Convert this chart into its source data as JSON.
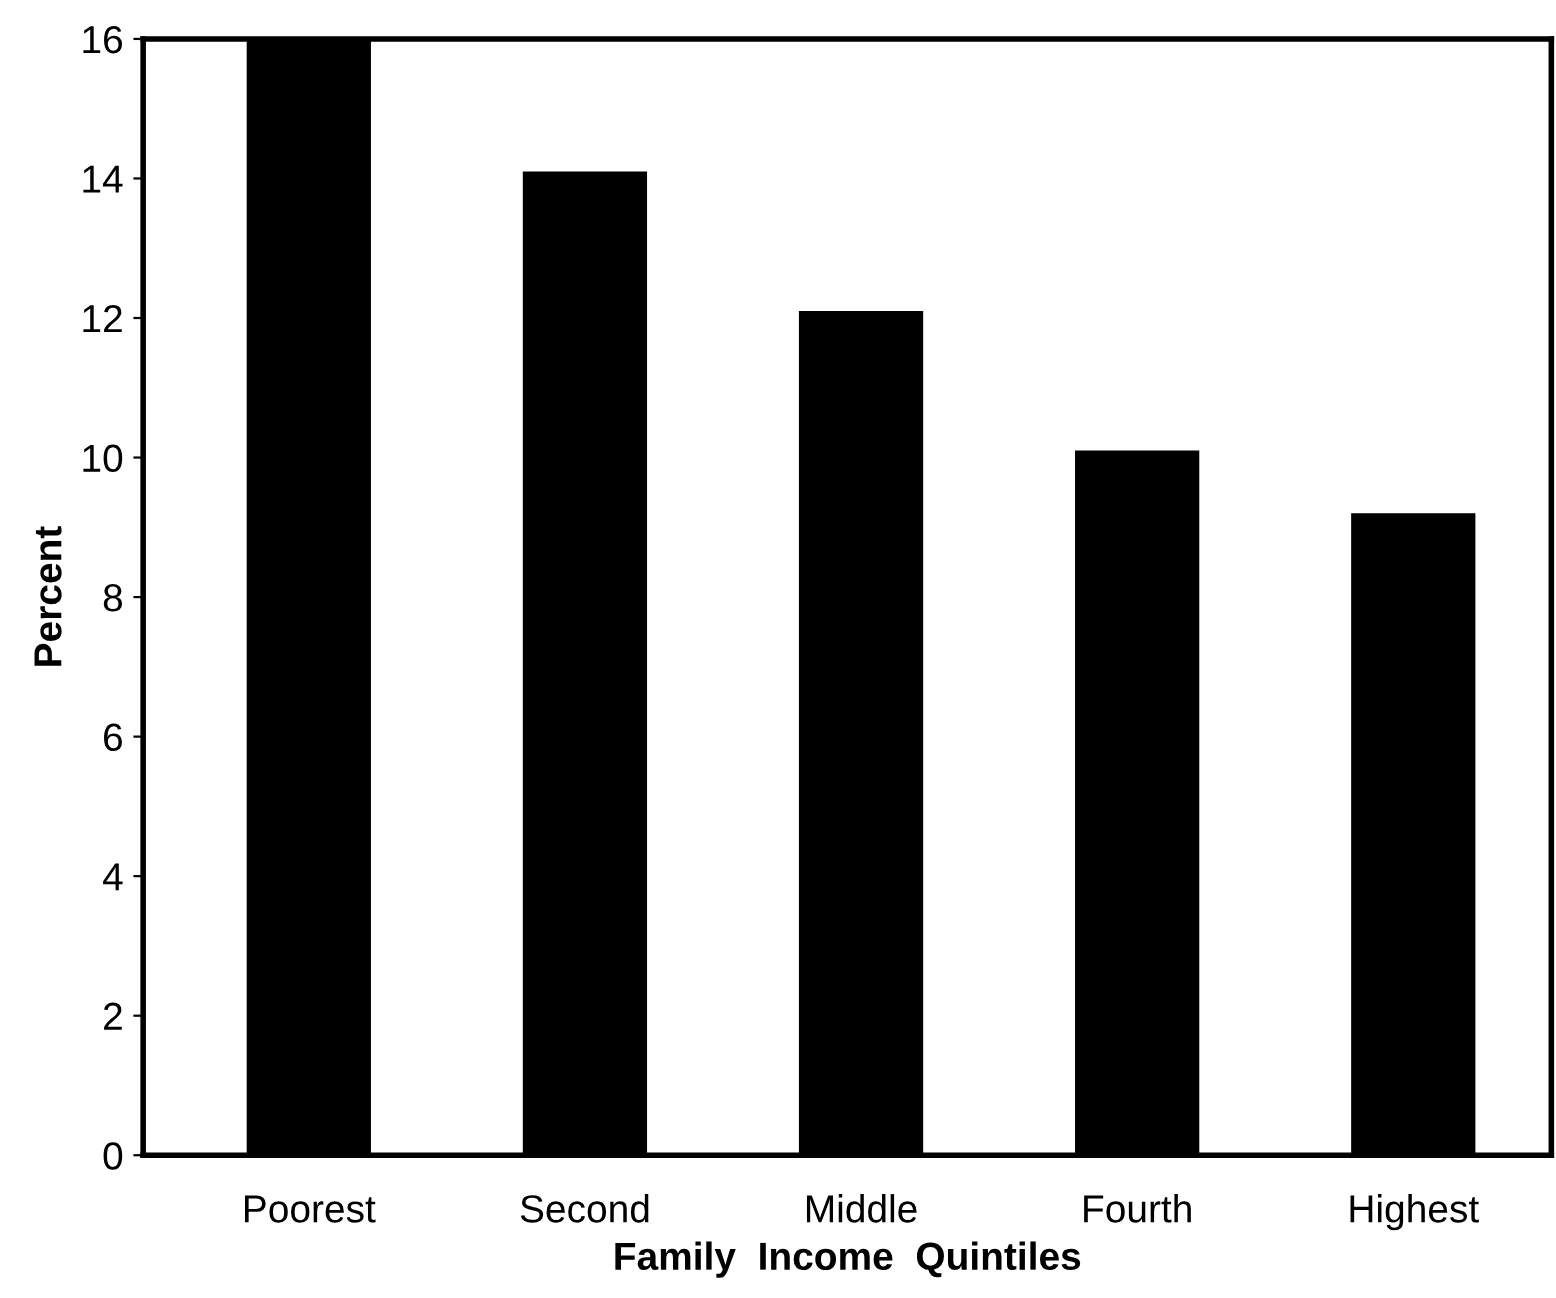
{
  "chart_data": {
    "type": "bar",
    "xlabel": "Family  Income  Quintiles",
    "ylabel": "Percent",
    "categories": [
      "Poorest",
      "Second",
      "Middle",
      "Fourth",
      "Highest"
    ],
    "values": [
      16,
      14.1,
      12.1,
      10.1,
      9.2
    ],
    "color": "#000000",
    "ylim": [
      0,
      16
    ],
    "yticks": [
      0,
      2,
      4,
      6,
      8,
      10,
      12,
      14,
      16
    ],
    "grid": false
  }
}
